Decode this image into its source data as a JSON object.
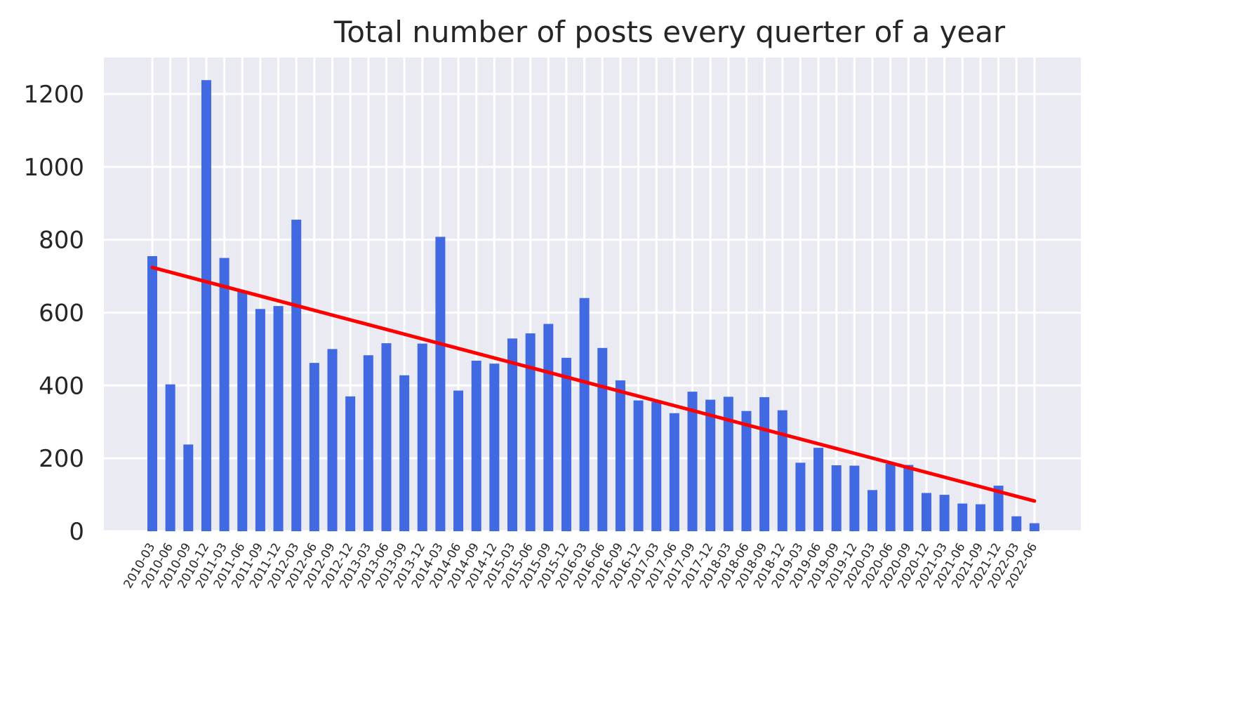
{
  "chart_data": {
    "type": "bar",
    "title": "Total number of posts every querter of a year",
    "xlabel": "",
    "ylabel": "",
    "categories": [
      "2010-03",
      "2010-06",
      "2010-09",
      "2010-12",
      "2011-03",
      "2011-06",
      "2011-09",
      "2011-12",
      "2012-03",
      "2012-06",
      "2012-09",
      "2012-12",
      "2013-03",
      "2013-06",
      "2013-09",
      "2013-12",
      "2014-03",
      "2014-06",
      "2014-09",
      "2014-12",
      "2015-03",
      "2015-06",
      "2015-09",
      "2015-12",
      "2016-03",
      "2016-06",
      "2016-09",
      "2016-12",
      "2017-03",
      "2017-06",
      "2017-09",
      "2017-12",
      "2018-03",
      "2018-06",
      "2018-09",
      "2018-12",
      "2019-03",
      "2019-06",
      "2019-09",
      "2019-12",
      "2020-03",
      "2020-06",
      "2020-09",
      "2020-12",
      "2021-03",
      "2021-06",
      "2021-09",
      "2021-12",
      "2022-03",
      "2022-06"
    ],
    "values": [
      755,
      403,
      238,
      1238,
      750,
      660,
      610,
      618,
      855,
      462,
      500,
      370,
      483,
      516,
      428,
      515,
      808,
      386,
      468,
      460,
      529,
      543,
      569,
      476,
      640,
      503,
      414,
      359,
      355,
      324,
      383,
      361,
      369,
      330,
      368,
      332,
      188,
      229,
      181,
      180,
      113,
      185,
      182,
      105,
      100,
      76,
      74,
      125,
      41,
      22
    ],
    "trend_line": {
      "start": 724,
      "end": 83
    },
    "ylim": [
      0,
      1300
    ],
    "yticks": [
      0,
      200,
      400,
      600,
      800,
      1000,
      1200
    ],
    "grid": true,
    "colors": {
      "bars": "#4169e1",
      "trend": "#ff0000",
      "background": "#eaeaf2",
      "grid": "#ffffff"
    }
  }
}
